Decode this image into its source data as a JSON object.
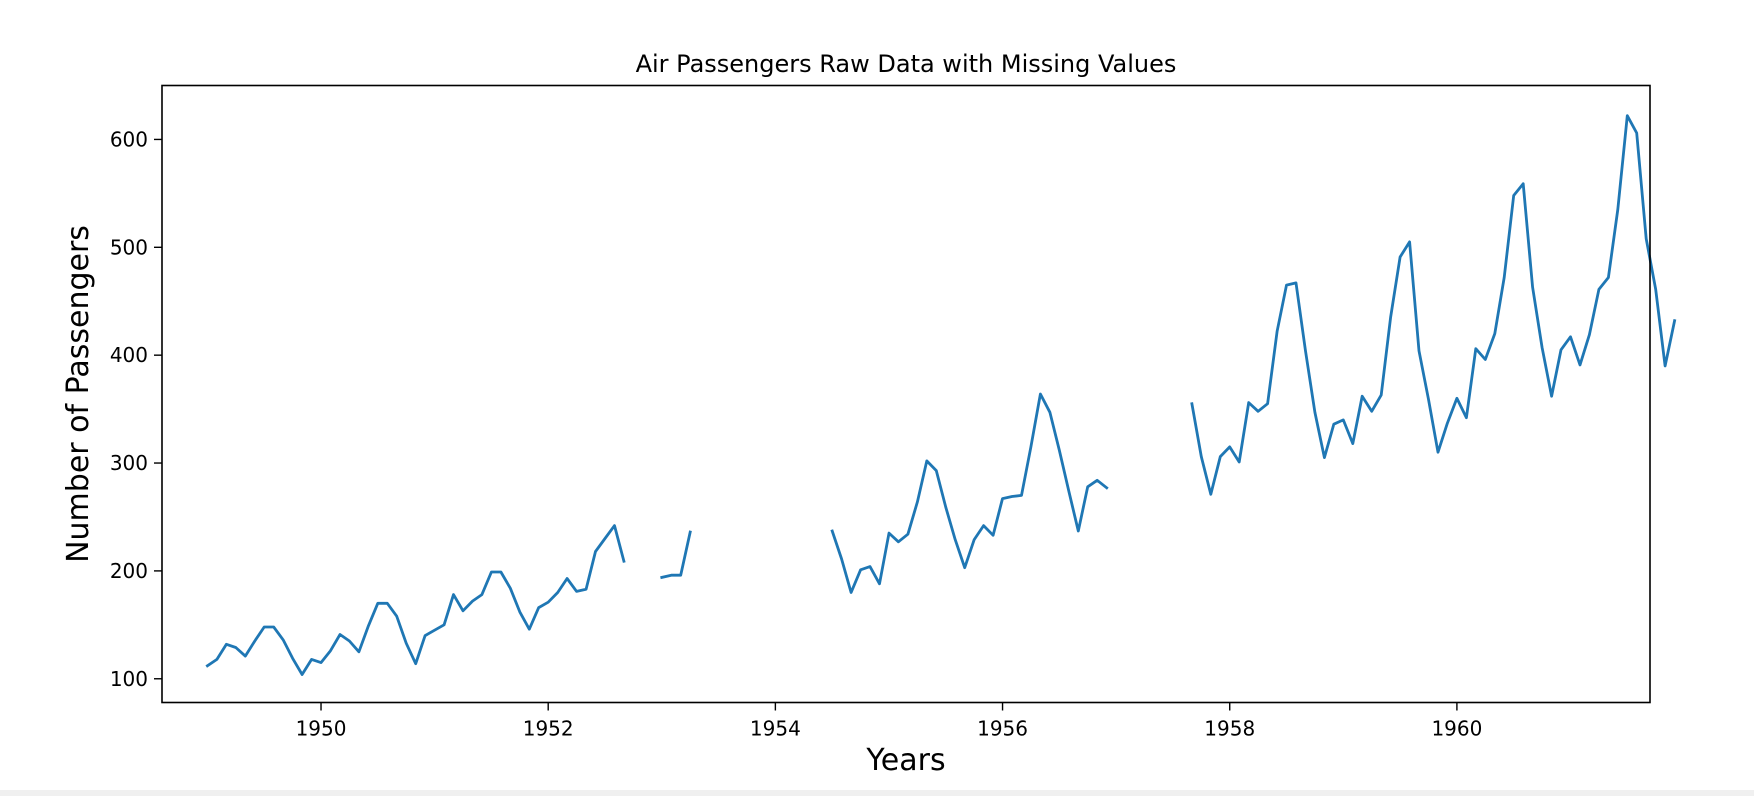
{
  "chart_data": {
    "type": "line",
    "title": "Air Passengers Raw Data with Missing Values",
    "xlabel": "Years",
    "ylabel": "Number of Passengers",
    "xlim": [
      1948.6,
      1961.7
    ],
    "ylim": [
      78,
      650
    ],
    "x_ticks": [
      1950,
      1952,
      1954,
      1956,
      1958,
      1960
    ],
    "y_ticks": [
      100,
      200,
      300,
      400,
      500,
      600
    ],
    "grid": false,
    "series": [
      {
        "color": "#1f77b4",
        "start": "1949-01",
        "frequency": "monthly",
        "values": [
          112,
          118,
          132,
          129,
          121,
          135,
          148,
          148,
          136,
          119,
          104,
          118,
          115,
          126,
          141,
          135,
          125,
          149,
          170,
          170,
          158,
          133,
          114,
          140,
          145,
          150,
          178,
          163,
          172,
          178,
          199,
          199,
          184,
          162,
          146,
          166,
          171,
          180,
          193,
          181,
          183,
          218,
          230,
          242,
          209,
          null,
          null,
          null,
          194,
          196,
          196,
          236,
          null,
          null,
          null,
          null,
          null,
          null,
          null,
          null,
          null,
          null,
          null,
          null,
          null,
          null,
          237,
          211,
          180,
          201,
          204,
          188,
          235,
          227,
          234,
          264,
          302,
          293,
          259,
          229,
          203,
          229,
          242,
          233,
          267,
          269,
          270,
          315,
          364,
          347,
          312,
          274,
          237,
          278,
          284,
          277,
          null,
          null,
          null,
          null,
          null,
          null,
          null,
          null,
          355,
          306,
          271,
          306,
          315,
          301,
          356,
          348,
          355,
          422,
          465,
          467,
          404,
          347,
          305,
          336,
          340,
          318,
          362,
          348,
          363,
          435,
          491,
          505,
          404,
          359,
          310,
          337,
          360,
          342,
          406,
          396,
          420,
          472,
          548,
          559,
          463,
          407,
          362,
          405,
          417,
          391,
          419,
          461,
          472,
          535,
          622,
          606,
          508,
          461,
          390,
          432
        ]
      }
    ]
  }
}
